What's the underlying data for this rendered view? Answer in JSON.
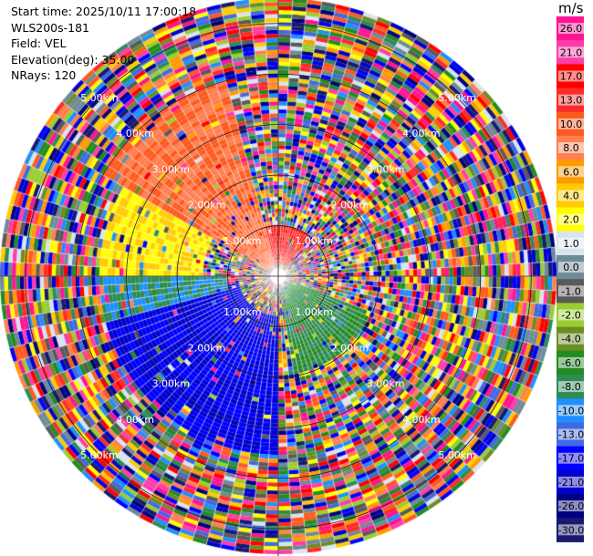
{
  "info": {
    "start_time": "Start time: 2025/10/11 17:00:18",
    "instrument": "WLS200s-181",
    "field": "Field: VEL",
    "elevation": "Elevation(deg): 35.00",
    "nrays": "NRays: 120"
  },
  "colorbar": {
    "unit": "m/s",
    "ticks": [
      "26.0",
      "21.0",
      "17.0",
      "13.0",
      "10.0",
      "8.0",
      "6.0",
      "4.0",
      "2.0",
      "1.0",
      "0.0",
      "-1.0",
      "-2.0",
      "-4.0",
      "-6.0",
      "-8.0",
      "-10.0",
      "-13.0",
      "-17.0",
      "-21.0",
      "-26.0",
      "-30.0"
    ],
    "colors": [
      "#ff1493",
      "#ff3ca8",
      "#ff0000",
      "#ff2a2a",
      "#ff5a1e",
      "#ff7f50",
      "#ff9a00",
      "#ffcc00",
      "#ffff00",
      "#d8e4f0",
      "#6f8a99",
      "#5a5a5a",
      "#9acd32",
      "#6b8e23",
      "#228b22",
      "#2e8b57",
      "#1e90ff",
      "#4169e1",
      "#0000ff",
      "#0000cd",
      "#000080",
      "#191970"
    ]
  },
  "chart_data": {
    "type": "heatmap",
    "subtype": "radar-ppi",
    "field": "VEL",
    "unit": "m/s",
    "nrays": 120,
    "elevation_deg": 35.0,
    "range_rings_km": [
      1.0,
      2.0,
      3.0,
      4.0,
      5.0
    ],
    "range_ring_labels": [
      "1.00km",
      "2.00km",
      "3.00km",
      "4.00km",
      "5.00km"
    ],
    "max_range_km": 5.5,
    "color_scale_range": [
      -30.0,
      26.0
    ],
    "coherent_regions": [
      {
        "azimuth_deg": [
          -60,
          -15
        ],
        "range_km": [
          0.2,
          4.0
        ],
        "approx_value": 10.0
      },
      {
        "azimuth_deg": [
          -90,
          -60
        ],
        "range_km": [
          1.5,
          3.5
        ],
        "approx_value": 4.0
      },
      {
        "azimuth_deg": [
          -105,
          -90
        ],
        "range_km": [
          1.0,
          3.5
        ],
        "approx_value": -8.0
      },
      {
        "azimuth_deg": [
          -180,
          -100
        ],
        "range_km": [
          0.8,
          3.5
        ],
        "approx_value": -17.0
      },
      {
        "azimuth_deg": [
          110,
          170
        ],
        "range_km": [
          0.2,
          2.0
        ],
        "approx_value": -6.0
      },
      {
        "azimuth_deg": [
          -20,
          40
        ],
        "range_km": [
          0.2,
          1.0
        ],
        "approx_value": 17.0
      }
    ]
  }
}
